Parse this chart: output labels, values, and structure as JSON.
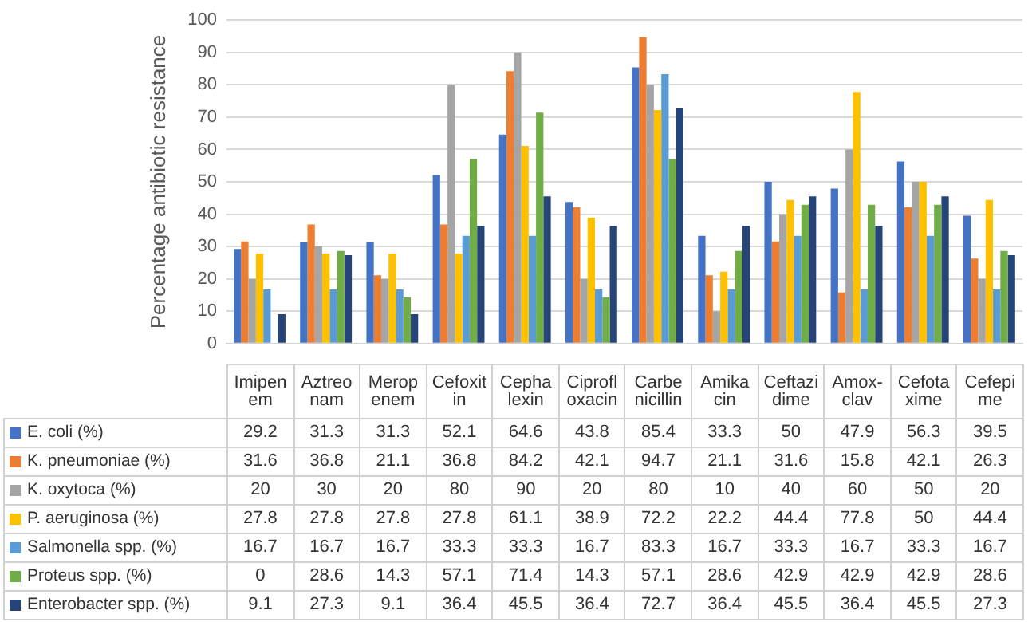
{
  "chart_data": {
    "type": "bar",
    "ylabel": "Percentage antibiotic resistance",
    "categories": [
      "Imipenem",
      "Aztreonam",
      "Meropenem",
      "Cefoxitin",
      "Cephalexin",
      "Ciprofloxacin",
      "Carbenicillin",
      "Amikacin",
      "Ceftazidime",
      "Amox-clav",
      "Cefotaxime",
      "Cefepime"
    ],
    "series": [
      {
        "name": "E. coli (%)",
        "color": "#4472c4",
        "values": [
          29.2,
          31.3,
          31.3,
          52.1,
          64.6,
          43.8,
          85.4,
          33.3,
          50,
          47.9,
          56.3,
          39.5
        ]
      },
      {
        "name": "K. pneumoniae (%)",
        "color": "#ed7d31",
        "values": [
          31.6,
          36.8,
          21.1,
          36.8,
          84.2,
          42.1,
          94.7,
          21.1,
          31.6,
          15.8,
          42.1,
          26.3
        ]
      },
      {
        "name": "K. oxytoca (%)",
        "color": "#a5a5a5",
        "values": [
          20,
          30,
          20,
          80,
          90,
          20,
          80,
          10,
          40,
          60,
          50,
          20
        ]
      },
      {
        "name": "P. aeruginosa (%)",
        "color": "#ffc000",
        "values": [
          27.8,
          27.8,
          27.8,
          27.8,
          61.1,
          38.9,
          72.2,
          22.2,
          44.4,
          77.8,
          50,
          44.4
        ]
      },
      {
        "name": "Salmonella spp. (%)",
        "color": "#5b9bd5",
        "values": [
          16.7,
          16.7,
          16.7,
          33.3,
          33.3,
          16.7,
          83.3,
          16.7,
          33.3,
          16.7,
          33.3,
          16.7
        ]
      },
      {
        "name": "Proteus spp. (%)",
        "color": "#70ad47",
        "values": [
          0,
          28.6,
          14.3,
          57.1,
          71.4,
          14.3,
          57.1,
          28.6,
          42.9,
          42.9,
          42.9,
          28.6
        ]
      },
      {
        "name": "Enterobacter spp. (%)",
        "color": "#264478",
        "values": [
          9.1,
          27.3,
          9.1,
          36.4,
          45.5,
          36.4,
          72.7,
          36.4,
          45.5,
          36.4,
          45.5,
          27.3
        ]
      }
    ],
    "ylim": [
      0,
      100
    ],
    "yticks": [
      0,
      10,
      20,
      30,
      40,
      50,
      60,
      70,
      80,
      90,
      100
    ],
    "grid": "y",
    "legend": "bottom",
    "data_labels": true
  }
}
